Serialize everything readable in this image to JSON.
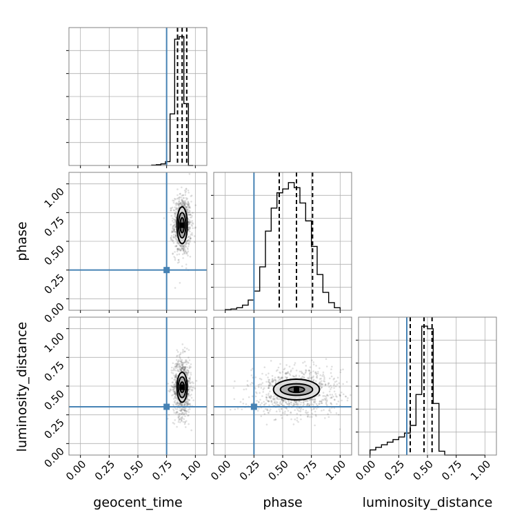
{
  "chart_data": {
    "type": "corner",
    "parameters": [
      "geocent_time",
      "phase",
      "luminosity_distance"
    ],
    "axis_range": [
      -0.1,
      1.1
    ],
    "ticks": [
      "0.00",
      "0.25",
      "0.50",
      "0.75",
      "1.00"
    ],
    "tick_values": [
      0,
      0.25,
      0.5,
      0.75,
      1.0
    ],
    "truths": {
      "geocent_time": 0.75,
      "phase": 0.25,
      "luminosity_distance": 0.32
    },
    "colors": {
      "truth": "#4682b4",
      "hist": "#000000",
      "grid": "#b0b0b0"
    },
    "grid": true,
    "hist1d": [
      {
        "param": "geocent_time",
        "bin_edges": [
          0.62,
          0.66,
          0.7,
          0.74,
          0.78,
          0.82,
          0.86,
          0.9,
          0.94,
          0.98
        ],
        "heights": [
          0.003,
          0.006,
          0.012,
          0.03,
          0.4,
          0.98,
          1.0,
          0.48,
          0.0
        ],
        "quantiles": [
          0.845,
          0.885,
          0.925
        ],
        "ymax": 1.07
      },
      {
        "param": "phase",
        "bin_edges": [
          0.0,
          0.05,
          0.1,
          0.15,
          0.2,
          0.25,
          0.3,
          0.35,
          0.4,
          0.45,
          0.5,
          0.55,
          0.6,
          0.65,
          0.7,
          0.75,
          0.8,
          0.85,
          0.9,
          0.95,
          1.0
        ],
        "heights": [
          0.005,
          0.01,
          0.02,
          0.04,
          0.08,
          0.15,
          0.34,
          0.62,
          0.8,
          0.92,
          0.95,
          1.0,
          0.96,
          0.84,
          0.7,
          0.5,
          0.28,
          0.14,
          0.06,
          0.02
        ],
        "quantiles": [
          0.47,
          0.62,
          0.76
        ],
        "ymax": 1.08
      },
      {
        "param": "luminosity_distance",
        "bin_edges": [
          0.0,
          0.05,
          0.1,
          0.15,
          0.2,
          0.25,
          0.3,
          0.35,
          0.4,
          0.45,
          0.5,
          0.55,
          0.6,
          0.65,
          0.7,
          0.75,
          0.8,
          0.85,
          0.9,
          0.95,
          1.0
        ],
        "heights": [
          0.04,
          0.06,
          0.08,
          0.1,
          0.12,
          0.14,
          0.17,
          0.23,
          0.47,
          1.0,
          0.98,
          0.4,
          0.03,
          0.0,
          0.0,
          0.0,
          0.0,
          0.0,
          0.0,
          0.0
        ],
        "quantiles": [
          0.35,
          0.47,
          0.54
        ],
        "ymax": 1.07
      }
    ],
    "hist2d": [
      {
        "x": "geocent_time",
        "y": "phase",
        "center": [
          0.885,
          0.64
        ],
        "spread": [
          0.03,
          0.1
        ],
        "contours": [
          {
            "sx": 0.018,
            "sy": 0.065
          },
          {
            "sx": 0.032,
            "sy": 0.11
          },
          {
            "sx": 0.045,
            "sy": 0.16
          }
        ]
      },
      {
        "x": "geocent_time",
        "y": "luminosity_distance",
        "center": [
          0.885,
          0.49
        ],
        "spread": [
          0.03,
          0.1
        ],
        "contours": [
          {
            "sx": 0.018,
            "sy": 0.045
          },
          {
            "sx": 0.033,
            "sy": 0.09
          },
          {
            "sx": 0.045,
            "sy": 0.13
          }
        ]
      },
      {
        "x": "phase",
        "y": "luminosity_distance",
        "center": [
          0.62,
          0.47
        ],
        "spread": [
          0.15,
          0.07
        ],
        "contours": [
          {
            "sx": 0.07,
            "sy": 0.025
          },
          {
            "sx": 0.14,
            "sy": 0.05
          },
          {
            "sx": 0.2,
            "sy": 0.09
          }
        ]
      }
    ]
  }
}
